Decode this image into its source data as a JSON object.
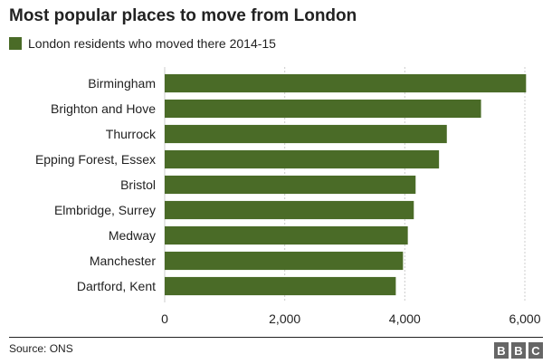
{
  "chart_data": {
    "type": "bar",
    "orientation": "horizontal",
    "title": "Most popular places to move from London",
    "legend": [
      {
        "name": "London residents who moved there 2014-15",
        "color": "#4a6b27"
      }
    ],
    "categories": [
      "Birmingham",
      "Brighton and Hove",
      "Thurrock",
      "Epping Forest, Essex",
      "Bristol",
      "Elmbridge, Surrey",
      "Medway",
      "Manchester",
      "Dartford, Kent"
    ],
    "series": [
      {
        "name": "London residents who moved there 2014-15",
        "values": [
          6020,
          5270,
          4700,
          4570,
          4180,
          4150,
          4050,
          3970,
          3850
        ]
      }
    ],
    "xlim": [
      0,
      6000
    ],
    "xticks": [
      0,
      2000,
      4000,
      6000
    ],
    "xtick_labels": [
      "0",
      "2,000",
      "4,000",
      "6,000"
    ],
    "grid": "vertical dotted",
    "legend_position": "top-left"
  },
  "footer": {
    "source": "Source: ONS",
    "logo_letters": [
      "B",
      "B",
      "C"
    ]
  },
  "colors": {
    "bar": "#4a6b27",
    "grid": "#cccccc",
    "text": "#222222",
    "logo_bg": "#666666"
  }
}
